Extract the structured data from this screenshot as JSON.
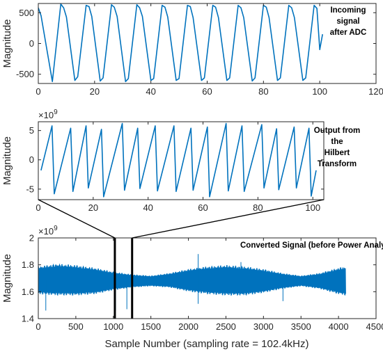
{
  "chart_data": [
    {
      "type": "line",
      "ylabel": "Magnitude",
      "annotation": [
        "Incoming",
        "signal",
        "after ADC"
      ],
      "xlim": [
        0,
        120
      ],
      "ylim": [
        -650,
        650
      ],
      "xticks": [
        0,
        20,
        40,
        60,
        80,
        100,
        120
      ],
      "xtick_labels": [
        "0",
        "20",
        "40",
        "60",
        "80",
        "100",
        "120"
      ],
      "yticks": [
        -500,
        0,
        500
      ],
      "ytick_labels": [
        "-500",
        "0",
        "500"
      ],
      "series": [
        {
          "x": [
            0,
            1,
            5,
            8,
            9,
            10,
            13,
            14,
            17,
            18,
            19,
            22,
            23,
            26,
            27,
            28,
            31,
            32,
            35,
            36,
            37,
            40,
            41,
            44,
            45,
            46,
            49,
            50,
            53,
            54,
            55,
            58,
            59,
            62,
            63,
            64,
            67,
            68,
            71,
            72,
            73,
            76,
            77,
            80,
            81,
            82,
            85,
            86,
            89,
            90,
            91,
            94,
            95,
            98,
            99,
            100,
            101
          ],
          "y": [
            580,
            450,
            -620,
            640,
            580,
            430,
            -600,
            -540,
            620,
            600,
            440,
            -610,
            -560,
            630,
            590,
            440,
            -620,
            -570,
            630,
            580,
            440,
            -600,
            -570,
            620,
            590,
            430,
            -600,
            -570,
            620,
            600,
            420,
            -600,
            -560,
            620,
            590,
            420,
            -600,
            -560,
            620,
            580,
            420,
            -610,
            -560,
            620,
            590,
            420,
            -600,
            -560,
            620,
            580,
            420,
            -600,
            -560,
            620,
            570,
            -100,
            150
          ]
        }
      ]
    },
    {
      "type": "line",
      "ylabel": "Magnitude",
      "exponent_label": "×10",
      "exponent_power": "9",
      "annotation": [
        "Output from",
        "the",
        "Hilbert",
        "Transform"
      ],
      "xlim": [
        0,
        104
      ],
      "ylim": [
        -6.8,
        6.5
      ],
      "xticks": [
        0,
        20,
        40,
        60,
        80,
        100
      ],
      "xtick_labels": [
        "0",
        "20",
        "40",
        "60",
        "80",
        "100"
      ],
      "yticks": [
        -5,
        0,
        5
      ],
      "ytick_labels": [
        "-5",
        "0",
        "5"
      ],
      "series": [
        {
          "x": [
            1,
            5,
            5.8,
            11.8,
            12.6,
            17.4,
            18.2,
            23.0,
            23.8,
            30.6,
            31.4,
            36.2,
            37.0,
            42.6,
            43.4,
            49.4,
            50.2,
            55.6,
            56.4,
            61.6,
            62.4,
            68.4,
            69.2,
            74.2,
            75.0,
            81.4,
            82.2,
            86.8,
            87.6,
            93.2,
            94.0,
            98.6,
            99.4,
            101.2
          ],
          "y": [
            -1.8,
            5.8,
            -5.8,
            5.4,
            -5.4,
            5.8,
            -4.8,
            5.2,
            -6.3,
            6.2,
            -5.2,
            5.4,
            -4.9,
            5.8,
            -5.3,
            5.8,
            -5.4,
            5.4,
            -5.2,
            5.6,
            -6.3,
            6.2,
            -5.3,
            5.8,
            -5.4,
            6.0,
            -4.8,
            5.3,
            -5.1,
            5.6,
            -4.8,
            5.4,
            -6.2,
            -1.8
          ]
        }
      ]
    },
    {
      "type": "line",
      "title": "",
      "ylabel": "Magnitude",
      "xlabel": "Sample Number (sampling rate = 102.4kHz)",
      "exponent_label": "×10",
      "exponent_power": "9",
      "annotation": [
        "Converted Signal (before Power Analysis FFT)"
      ],
      "xlim": [
        0,
        4500
      ],
      "ylim": [
        1.4,
        2.0
      ],
      "xticks": [
        0,
        500,
        1000,
        1500,
        2000,
        2500,
        3000,
        3500,
        4000,
        4500
      ],
      "xtick_labels": [
        "0",
        "500",
        "1000",
        "1500",
        "2000",
        "2500",
        "3000",
        "3500",
        "4000",
        "4500"
      ],
      "yticks": [
        1.4,
        1.6,
        1.8,
        2.0
      ],
      "ytick_labels": [
        "1.4",
        "1.6",
        "1.8",
        "2"
      ],
      "envelope": {
        "x": [
          0,
          250,
          500,
          750,
          1000,
          1250,
          1500,
          1750,
          2000,
          2250,
          2500,
          2750,
          3000,
          3250,
          3500,
          3750,
          4000,
          4096
        ],
        "upper": [
          1.79,
          1.81,
          1.8,
          1.78,
          1.75,
          1.73,
          1.72,
          1.74,
          1.77,
          1.79,
          1.8,
          1.79,
          1.77,
          1.74,
          1.72,
          1.74,
          1.78,
          1.79
        ],
        "lower": [
          1.58,
          1.57,
          1.57,
          1.58,
          1.61,
          1.63,
          1.64,
          1.63,
          1.6,
          1.58,
          1.57,
          1.57,
          1.59,
          1.62,
          1.64,
          1.62,
          1.58,
          1.57
        ]
      },
      "spikes": [
        {
          "x": 100,
          "y": 1.46
        },
        {
          "x": 1030,
          "y": 1.46
        },
        {
          "x": 1180,
          "y": 1.47
        },
        {
          "x": 2130,
          "y": 1.88
        },
        {
          "x": 2130,
          "y": 1.51
        },
        {
          "x": 2700,
          "y": 1.82
        },
        {
          "x": 3260,
          "y": 1.53
        }
      ],
      "zoom_region_x": [
        1020,
        1250
      ],
      "series_color": "#0072BD"
    }
  ]
}
